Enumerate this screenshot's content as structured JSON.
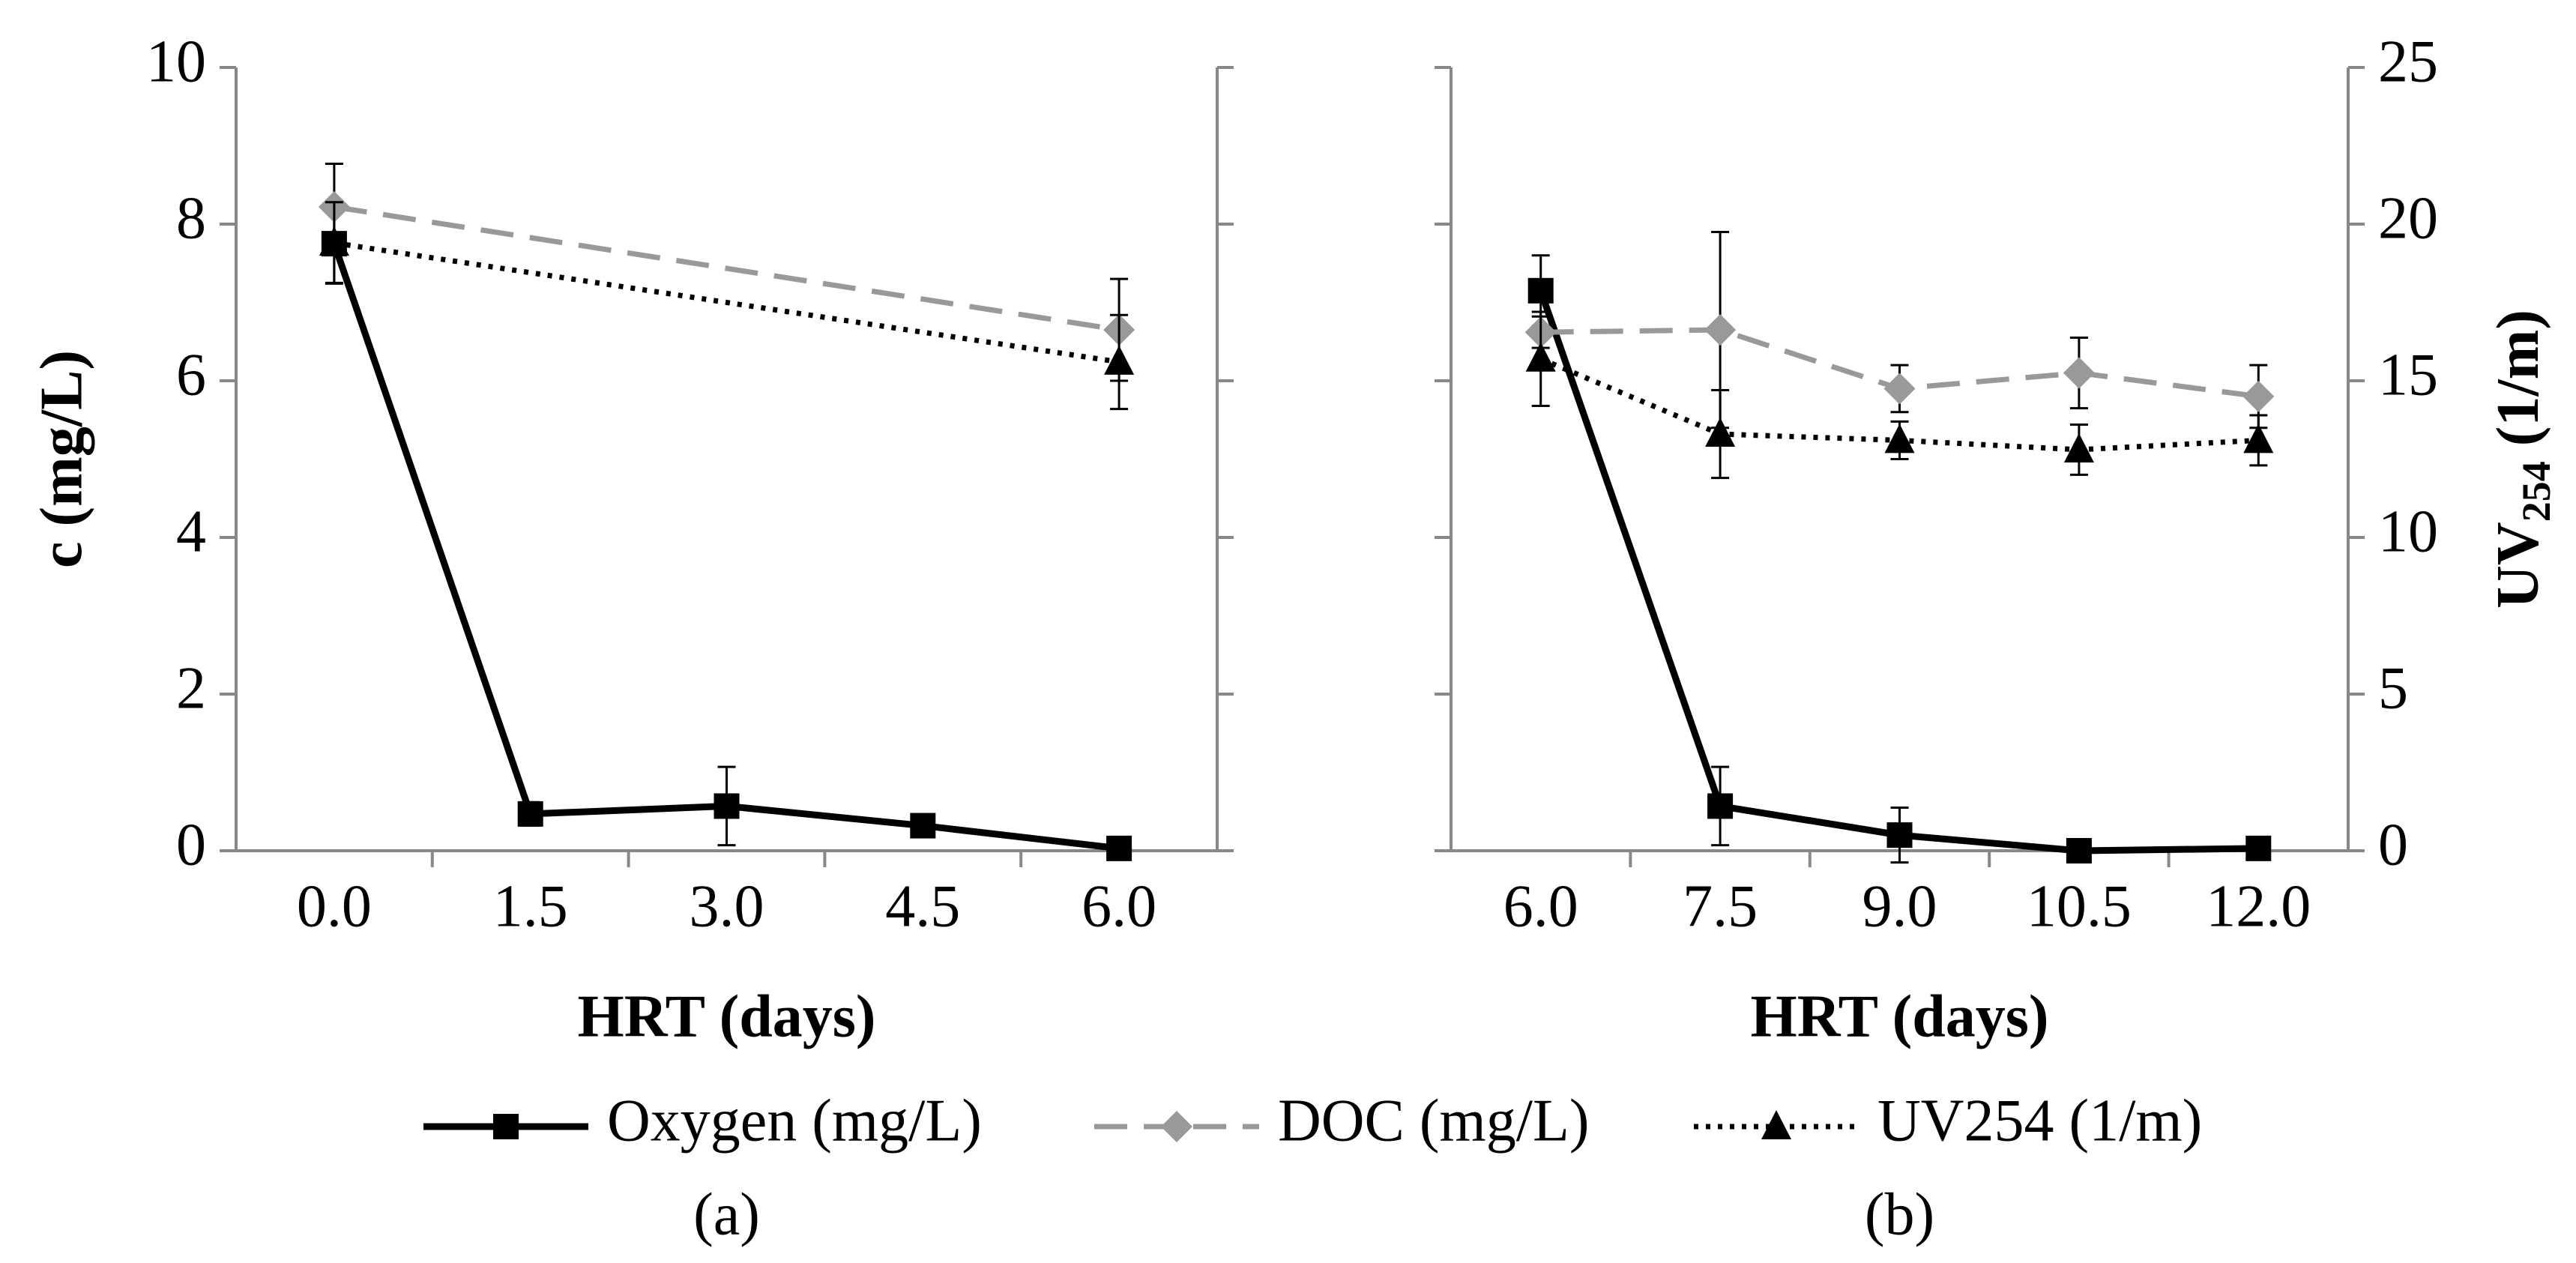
{
  "chart_data": [
    {
      "type": "line",
      "caption": "(a)",
      "x_label": "HRT (days)",
      "y_label": "c (mg/L)",
      "xlim": [
        -0.75,
        6.75
      ],
      "xticks": [
        {
          "value": 0,
          "label": "0.0"
        },
        {
          "value": 1.5,
          "label": "1.5"
        },
        {
          "value": 3,
          "label": "3.0"
        },
        {
          "value": 4.5,
          "label": "4.5"
        },
        {
          "value": 6,
          "label": "6.0"
        }
      ],
      "ylim": [
        0,
        10
      ],
      "yticks": [
        0,
        2,
        4,
        6,
        8,
        10
      ],
      "y2lim": [
        0,
        25
      ],
      "series": [
        {
          "name": "Oxygen (mg/L)",
          "color": "#000000",
          "dash": "solid",
          "marker": "square",
          "x": [
            0,
            1.5,
            3,
            4.5,
            6
          ],
          "values": [
            7.75,
            0.47,
            0.57,
            0.32,
            0.03
          ],
          "errors": [
            0.5,
            0.15,
            0.5,
            0.05,
            0.05
          ]
        },
        {
          "name": "DOC (mg/L)",
          "color": "#999999",
          "dash": "dashed",
          "marker": "diamond",
          "x": [
            0,
            6
          ],
          "values": [
            8.22,
            6.65
          ],
          "errors": [
            0.55,
            0.65
          ]
        },
        {
          "name": "UV254 (1/m)",
          "color": "#000000",
          "dash": "dotted",
          "marker": "triangle",
          "axis": "y2",
          "x": [
            0,
            6
          ],
          "values": [
            19.4,
            15.6
          ],
          "errors": [
            1.3,
            1.5
          ]
        }
      ]
    },
    {
      "type": "line",
      "caption": "(b)",
      "x_label": "HRT (days)",
      "y2_label": {
        "main": "UV",
        "sub": "254",
        "rest": " (1/m)"
      },
      "xlim": [
        5.25,
        12.75
      ],
      "xticks": [
        {
          "value": 6,
          "label": "6.0"
        },
        {
          "value": 7.5,
          "label": "7.5"
        },
        {
          "value": 9,
          "label": "9.0"
        },
        {
          "value": 10.5,
          "label": "10.5"
        },
        {
          "value": 12,
          "label": "12.0"
        }
      ],
      "ylim": [
        0,
        10
      ],
      "y2lim": [
        0,
        25
      ],
      "y2ticks": [
        0,
        5,
        10,
        15,
        20,
        25
      ],
      "series": [
        {
          "name": "Oxygen (mg/L)",
          "color": "#000000",
          "dash": "solid",
          "marker": "square",
          "x": [
            6,
            7.5,
            9,
            10.5,
            12
          ],
          "values": [
            7.15,
            0.57,
            0.2,
            0.0,
            0.03
          ],
          "errors": [
            0.45,
            0.5,
            0.35,
            0.05,
            0.05
          ]
        },
        {
          "name": "DOC (mg/L)",
          "color": "#999999",
          "dash": "dashed",
          "marker": "diamond",
          "x": [
            6,
            7.5,
            9,
            10.5,
            12
          ],
          "values": [
            6.62,
            6.65,
            5.9,
            6.1,
            5.8
          ],
          "errors": [
            0.2,
            1.25,
            0.3,
            0.45,
            0.4
          ]
        },
        {
          "name": "UV254 (1/m)",
          "color": "#000000",
          "dash": "dotted",
          "marker": "triangle",
          "axis": "y2",
          "x": [
            6,
            7.5,
            9,
            10.5,
            12
          ],
          "values": [
            15.7,
            13.3,
            13.1,
            12.8,
            13.1
          ],
          "errors": [
            1.5,
            1.4,
            0.6,
            0.8,
            0.8
          ]
        }
      ]
    }
  ]
}
